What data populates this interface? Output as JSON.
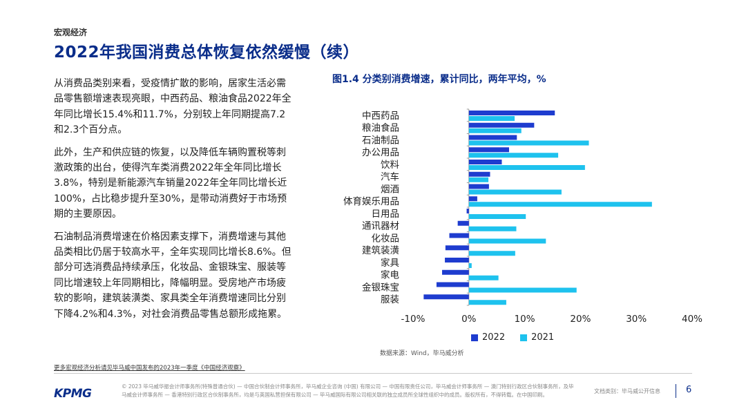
{
  "header": {
    "section": "宏观经济",
    "title": "2022年我国消费总体恢复依然缓慢（续）"
  },
  "body": {
    "paragraphs": [
      "从消费品类别来看，受疫情扩散的影响，居家生活必需品零售额增速表现亮眼，中西药品、粮油食品2022年全年同比增长15.4%和11.7%，分别较上年同期提高7.2和2.3个百分点。",
      "此外，生产和供应链的恢复，以及降低车辆购置税等刺激政策的出台，使得汽车类消费2022年全年同比增长3.8%，特别是新能源汽车销量2022年全年同比增长近100%，占比稳步提升至30%，是带动消费好于市场预期的主要原因。",
      "石油制品消费增速在价格因素支撑下，消费增速与其他品类相比仍居于较高水平，全年实现同比增长8.6%。但部分可选消费品持续承压，化妆品、金银珠宝、服装等同比增速较上年同期相比，降幅明显。受房地产市场疲软的影响，建筑装潢类、家具类全年消费增速同比分别下降4.2%和4.3%，对社会消费品零售总额形成拖累。"
    ]
  },
  "chart_data": {
    "type": "bar",
    "orientation": "horizontal",
    "title": "图1.4 分类别消费增速，累计同比，两年平均，%",
    "categories": [
      "中西药品",
      "粮油食品",
      "石油制品",
      "办公用品",
      "饮料",
      "汽车",
      "烟酒",
      "体育娱乐用品",
      "日用品",
      "通讯器材",
      "化妆品",
      "建筑装潢",
      "家具",
      "家电",
      "金银珠宝",
      "服装"
    ],
    "series": [
      {
        "name": "2022",
        "color": "#1e3ccf",
        "values": [
          15.4,
          11.7,
          8.6,
          7.2,
          5.9,
          3.8,
          3.6,
          1.5,
          -0.4,
          -2.0,
          -3.5,
          -4.2,
          -4.3,
          -4.8,
          -5.8,
          -8.1
        ]
      },
      {
        "name": "2021",
        "color": "#1ec2ee",
        "values": [
          8.2,
          9.4,
          21.5,
          16.0,
          20.8,
          3.5,
          16.6,
          32.8,
          10.2,
          8.5,
          13.8,
          8.3,
          0.5,
          5.3,
          19.3,
          6.7
        ]
      }
    ],
    "xlim": [
      -10,
      40
    ],
    "xticks": [
      "-10%",
      "0%",
      "10%",
      "20%",
      "30%",
      "40%"
    ],
    "legend": "bottom",
    "source": "数据来源：Wind，毕马威分析"
  },
  "footer": {
    "link": "更多宏观经济分析请见毕马威中国发布的2023年一季度《中国经济观察》",
    "logo": "KPMG",
    "copyright": "© 2023 毕马威华振会计师事务所(特殊普通合伙) — 中国合伙制会计师事务所，毕马威企业咨询 (中国) 有限公司 — 中国有限责任公司，毕马威会计师事务所 — 澳门特别行政区合伙制事务所，及毕马威会计师事务所 — 香港特别行政区合伙制事务所，均是与英国私营担保有限公司 — 毕马威国际有限公司相关联的独立成员所全球性组织中的成员。版权所有，不得转载。在中国印刷。",
    "doc_class": "文档类别：毕马威公开信息",
    "page": "6"
  }
}
